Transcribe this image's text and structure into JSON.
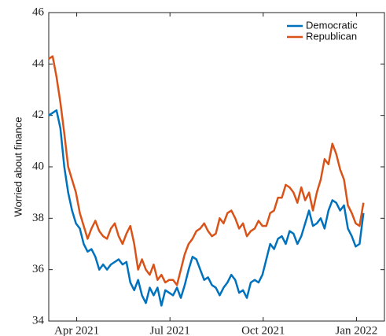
{
  "chart_data": {
    "type": "line",
    "ylabel": "Worried about finance",
    "x": [
      2.1,
      2.225,
      2.35,
      2.475,
      2.6,
      2.725,
      2.85,
      2.975,
      3.1,
      3.225,
      3.35,
      3.475,
      3.6,
      3.725,
      3.85,
      3.975,
      4.1,
      4.225,
      4.35,
      4.475,
      4.6,
      4.725,
      4.85,
      4.975,
      5.1,
      5.225,
      5.35,
      5.475,
      5.6,
      5.725,
      5.85,
      5.975,
      6.1,
      6.225,
      6.35,
      6.475,
      6.6,
      6.725,
      6.85,
      6.975,
      7.1,
      7.225,
      7.35,
      7.475,
      7.6,
      7.725,
      7.85,
      7.975,
      8.1,
      8.225,
      8.35,
      8.475,
      8.6,
      8.725,
      8.85,
      8.975,
      9.1,
      9.225,
      9.35,
      9.475,
      9.6,
      9.725,
      9.85,
      9.975,
      10.1,
      10.225,
      10.35,
      10.475,
      10.6,
      10.725,
      10.85,
      10.975,
      11.1,
      11.225,
      11.35,
      11.475,
      11.6,
      11.725,
      11.85,
      11.975,
      12.1,
      12.225
    ],
    "series": [
      {
        "name": "Democratic",
        "color": "#0072bd",
        "values": [
          42.0,
          42.1,
          42.2,
          41.5,
          40.0,
          39.0,
          38.3,
          37.8,
          37.6,
          37.0,
          36.7,
          36.8,
          36.5,
          36.0,
          36.2,
          36.0,
          36.2,
          36.3,
          36.4,
          36.2,
          36.3,
          35.5,
          35.2,
          35.6,
          35.0,
          34.7,
          35.3,
          35.0,
          35.3,
          34.6,
          35.2,
          35.1,
          35.0,
          35.3,
          34.9,
          35.4,
          36.0,
          36.5,
          36.4,
          36.0,
          35.6,
          35.7,
          35.4,
          35.3,
          35.0,
          35.3,
          35.5,
          35.8,
          35.6,
          35.1,
          35.2,
          34.9,
          35.5,
          35.6,
          35.5,
          35.8,
          36.4,
          37.0,
          36.8,
          37.2,
          37.3,
          37.0,
          37.5,
          37.4,
          37.0,
          37.3,
          37.8,
          38.3,
          37.7,
          37.8,
          38.0,
          37.6,
          38.3,
          38.7,
          38.6,
          38.3,
          38.5,
          37.6,
          37.3,
          36.9,
          37.0,
          38.2
        ]
      },
      {
        "name": "Republican",
        "color": "#d95319",
        "values": [
          44.2,
          44.3,
          43.5,
          42.5,
          41.3,
          40.0,
          39.5,
          39.0,
          38.2,
          37.7,
          37.2,
          37.6,
          37.9,
          37.5,
          37.3,
          37.2,
          37.6,
          37.8,
          37.3,
          37.0,
          37.4,
          37.7,
          37.0,
          36.0,
          36.4,
          36.0,
          35.8,
          36.2,
          35.6,
          35.8,
          35.5,
          35.6,
          35.6,
          35.4,
          36.0,
          36.6,
          37.0,
          37.2,
          37.5,
          37.6,
          37.8,
          37.5,
          37.3,
          37.4,
          38.0,
          37.8,
          38.2,
          38.3,
          38.0,
          37.6,
          37.8,
          37.3,
          37.5,
          37.6,
          37.9,
          37.7,
          37.7,
          38.2,
          38.3,
          38.8,
          38.8,
          39.3,
          39.2,
          39.0,
          38.6,
          39.2,
          38.7,
          39.0,
          38.3,
          39.0,
          39.5,
          40.3,
          40.1,
          40.9,
          40.5,
          39.9,
          39.5,
          38.5,
          38.2,
          37.8,
          37.7,
          38.6
        ]
      }
    ],
    "xlim": [
      2.1,
      12.9
    ],
    "xticks": [
      {
        "value": 3,
        "label": "Apr 2021"
      },
      {
        "value": 6,
        "label": "Jul 2021"
      },
      {
        "value": 9,
        "label": "Oct 2021"
      },
      {
        "value": 12,
        "label": "Jan 2022"
      }
    ],
    "ylim": [
      34,
      46
    ],
    "yticks": [
      34,
      36,
      38,
      40,
      42,
      44,
      46
    ],
    "grid": false,
    "legend": "northeast"
  }
}
